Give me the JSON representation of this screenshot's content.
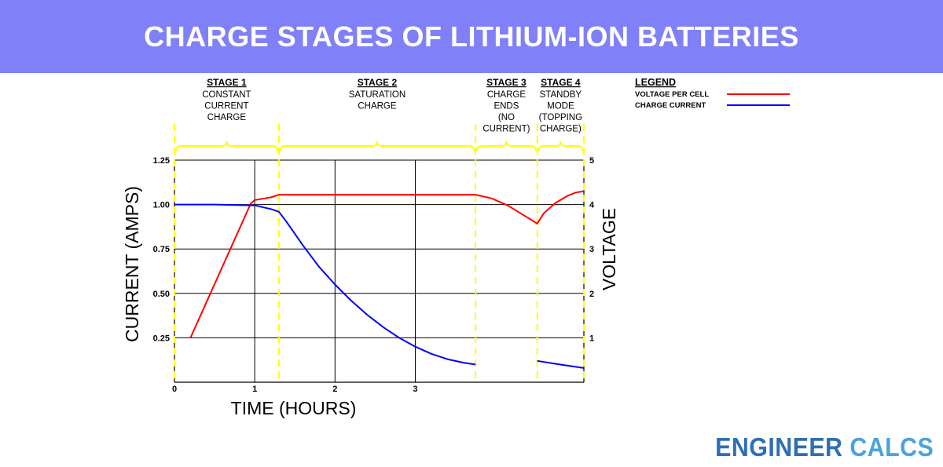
{
  "header": {
    "title": "CHARGE STAGES OF LITHIUM-ION BATTERIES"
  },
  "brand": {
    "word1": "ENGINEER",
    "word2": "CALCS",
    "color1": "#2f6fb3",
    "color2": "#4aa3df"
  },
  "colors": {
    "banner": "#8080f8",
    "voltage": "#ff0000",
    "current": "#0000ff",
    "stage_marker": "#ffff00"
  },
  "chart_data": {
    "type": "line",
    "xlabel": "TIME (HOURS)",
    "ylabel_left": "CURRENT (AMPS)",
    "ylabel_right": "VOLTAGE",
    "x_ticks": [
      "0",
      "1",
      "2",
      "3"
    ],
    "x_tick_values": [
      0,
      1,
      2,
      3
    ],
    "xlim": [
      0,
      5.1
    ],
    "y_left_ticks": [
      "0.25",
      "0.50",
      "0.75",
      "1.00",
      "1.25"
    ],
    "y_left_tick_values": [
      0.25,
      0.5,
      0.75,
      1.0,
      1.25
    ],
    "ylim_left": [
      0,
      1.25
    ],
    "y_right_ticks": [
      "1",
      "2",
      "3",
      "4",
      "5"
    ],
    "y_right_tick_values": [
      1,
      2,
      3,
      4,
      5
    ],
    "ylim_right": [
      0,
      5
    ],
    "grid": true,
    "stage_boundaries": [
      0,
      1.3,
      3.75,
      4.52,
      5.1
    ],
    "stages": [
      {
        "heading": "STAGE 1",
        "lines": [
          "CONSTANT",
          "CURRENT",
          "CHARGE"
        ]
      },
      {
        "heading": "STAGE 2",
        "lines": [
          "SATURATION",
          "CHARGE"
        ]
      },
      {
        "heading": "STAGE 3",
        "lines": [
          "CHARGE",
          "ENDS",
          "(NO",
          "CURRENT)"
        ]
      },
      {
        "heading": "STAGE 4",
        "lines": [
          "STANDBY",
          "MODE",
          "(TOPPING",
          "CHARGE)"
        ]
      }
    ],
    "legend": {
      "title": "LEGEND",
      "position": "top-right",
      "entries": [
        {
          "label": "VOLTAGE PER CELL",
          "color": "#ff0000"
        },
        {
          "label": "CHARGE CURRENT",
          "color": "#0000ff"
        }
      ]
    },
    "series": [
      {
        "name": "VOLTAGE PER CELL",
        "axis": "right",
        "color": "#ff0000",
        "segments": [
          [
            [
              0.2,
              1.0
            ],
            [
              0.95,
              4.02
            ],
            [
              1.0,
              4.1
            ],
            [
              1.1,
              4.13
            ],
            [
              1.2,
              4.16
            ],
            [
              1.3,
              4.22
            ],
            [
              2.0,
              4.22
            ],
            [
              3.0,
              4.22
            ],
            [
              3.75,
              4.22
            ],
            [
              3.95,
              4.14
            ],
            [
              4.15,
              3.98
            ],
            [
              4.35,
              3.76
            ],
            [
              4.52,
              3.57
            ],
            [
              4.6,
              3.8
            ],
            [
              4.75,
              4.04
            ],
            [
              4.9,
              4.2
            ],
            [
              5.0,
              4.27
            ],
            [
              5.1,
              4.3
            ]
          ]
        ]
      },
      {
        "name": "CHARGE CURRENT",
        "axis": "left",
        "color": "#0000ff",
        "segments": [
          [
            [
              0.0,
              1.0
            ],
            [
              0.5,
              1.0
            ],
            [
              1.0,
              0.995
            ],
            [
              1.2,
              0.975
            ],
            [
              1.3,
              0.96
            ],
            [
              1.4,
              0.9
            ],
            [
              1.6,
              0.77
            ],
            [
              1.8,
              0.65
            ],
            [
              2.0,
              0.55
            ],
            [
              2.2,
              0.46
            ],
            [
              2.4,
              0.38
            ],
            [
              2.6,
              0.31
            ],
            [
              2.8,
              0.25
            ],
            [
              3.0,
              0.2
            ],
            [
              3.2,
              0.16
            ],
            [
              3.4,
              0.13
            ],
            [
              3.6,
              0.11
            ],
            [
              3.75,
              0.1
            ]
          ],
          [
            [
              4.52,
              0.12
            ],
            [
              4.8,
              0.1
            ],
            [
              5.1,
              0.08
            ]
          ]
        ]
      }
    ]
  }
}
